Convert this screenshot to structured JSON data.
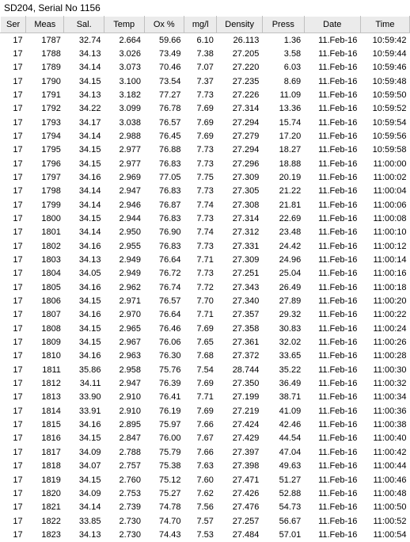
{
  "title": "SD204, Serial No 1156",
  "columns": [
    "Ser",
    "Meas",
    "Sal.",
    "Temp",
    "Ox %",
    "mg/l",
    "Density",
    "Press",
    "Date",
    "Time"
  ],
  "rows": [
    [
      "17",
      "1787",
      "32.74",
      "2.664",
      "59.66",
      "6.10",
      "26.113",
      "1.36",
      "11.Feb-16",
      "10:59:42"
    ],
    [
      "17",
      "1788",
      "34.13",
      "3.026",
      "73.49",
      "7.38",
      "27.205",
      "3.58",
      "11.Feb-16",
      "10:59:44"
    ],
    [
      "17",
      "1789",
      "34.14",
      "3.073",
      "70.46",
      "7.07",
      "27.220",
      "6.03",
      "11.Feb-16",
      "10:59:46"
    ],
    [
      "17",
      "1790",
      "34.15",
      "3.100",
      "73.54",
      "7.37",
      "27.235",
      "8.69",
      "11.Feb-16",
      "10:59:48"
    ],
    [
      "17",
      "1791",
      "34.13",
      "3.182",
      "77.27",
      "7.73",
      "27.226",
      "11.09",
      "11.Feb-16",
      "10:59:50"
    ],
    [
      "17",
      "1792",
      "34.22",
      "3.099",
      "76.78",
      "7.69",
      "27.314",
      "13.36",
      "11.Feb-16",
      "10:59:52"
    ],
    [
      "17",
      "1793",
      "34.17",
      "3.038",
      "76.57",
      "7.69",
      "27.294",
      "15.74",
      "11.Feb-16",
      "10:59:54"
    ],
    [
      "17",
      "1794",
      "34.14",
      "2.988",
      "76.45",
      "7.69",
      "27.279",
      "17.20",
      "11.Feb-16",
      "10:59:56"
    ],
    [
      "17",
      "1795",
      "34.15",
      "2.977",
      "76.88",
      "7.73",
      "27.294",
      "18.27",
      "11.Feb-16",
      "10:59:58"
    ],
    [
      "17",
      "1796",
      "34.15",
      "2.977",
      "76.83",
      "7.73",
      "27.296",
      "18.88",
      "11.Feb-16",
      "11:00:00"
    ],
    [
      "17",
      "1797",
      "34.16",
      "2.969",
      "77.05",
      "7.75",
      "27.309",
      "20.19",
      "11.Feb-16",
      "11:00:02"
    ],
    [
      "17",
      "1798",
      "34.14",
      "2.947",
      "76.83",
      "7.73",
      "27.305",
      "21.22",
      "11.Feb-16",
      "11:00:04"
    ],
    [
      "17",
      "1799",
      "34.14",
      "2.946",
      "76.87",
      "7.74",
      "27.308",
      "21.81",
      "11.Feb-16",
      "11:00:06"
    ],
    [
      "17",
      "1800",
      "34.15",
      "2.944",
      "76.83",
      "7.73",
      "27.314",
      "22.69",
      "11.Feb-16",
      "11:00:08"
    ],
    [
      "17",
      "1801",
      "34.14",
      "2.950",
      "76.90",
      "7.74",
      "27.312",
      "23.48",
      "11.Feb-16",
      "11:00:10"
    ],
    [
      "17",
      "1802",
      "34.16",
      "2.955",
      "76.83",
      "7.73",
      "27.331",
      "24.42",
      "11.Feb-16",
      "11:00:12"
    ],
    [
      "17",
      "1803",
      "34.13",
      "2.949",
      "76.64",
      "7.71",
      "27.309",
      "24.96",
      "11.Feb-16",
      "11:00:14"
    ],
    [
      "17",
      "1804",
      "34.05",
      "2.949",
      "76.72",
      "7.73",
      "27.251",
      "25.04",
      "11.Feb-16",
      "11:00:16"
    ],
    [
      "17",
      "1805",
      "34.16",
      "2.962",
      "76.74",
      "7.72",
      "27.343",
      "26.49",
      "11.Feb-16",
      "11:00:18"
    ],
    [
      "17",
      "1806",
      "34.15",
      "2.971",
      "76.57",
      "7.70",
      "27.340",
      "27.89",
      "11.Feb-16",
      "11:00:20"
    ],
    [
      "17",
      "1807",
      "34.16",
      "2.970",
      "76.64",
      "7.71",
      "27.357",
      "29.32",
      "11.Feb-16",
      "11:00:22"
    ],
    [
      "17",
      "1808",
      "34.15",
      "2.965",
      "76.46",
      "7.69",
      "27.358",
      "30.83",
      "11.Feb-16",
      "11:00:24"
    ],
    [
      "17",
      "1809",
      "34.15",
      "2.967",
      "76.06",
      "7.65",
      "27.361",
      "32.02",
      "11.Feb-16",
      "11:00:26"
    ],
    [
      "17",
      "1810",
      "34.16",
      "2.963",
      "76.30",
      "7.68",
      "27.372",
      "33.65",
      "11.Feb-16",
      "11:00:28"
    ],
    [
      "17",
      "1811",
      "35.86",
      "2.958",
      "75.76",
      "7.54",
      "28.744",
      "35.22",
      "11.Feb-16",
      "11:00:30"
    ],
    [
      "17",
      "1812",
      "34.11",
      "2.947",
      "76.39",
      "7.69",
      "27.350",
      "36.49",
      "11.Feb-16",
      "11:00:32"
    ],
    [
      "17",
      "1813",
      "33.90",
      "2.910",
      "76.41",
      "7.71",
      "27.199",
      "38.71",
      "11.Feb-16",
      "11:00:34"
    ],
    [
      "17",
      "1814",
      "33.91",
      "2.910",
      "76.19",
      "7.69",
      "27.219",
      "41.09",
      "11.Feb-16",
      "11:00:36"
    ],
    [
      "17",
      "1815",
      "34.16",
      "2.895",
      "75.97",
      "7.66",
      "27.424",
      "42.46",
      "11.Feb-16",
      "11:00:38"
    ],
    [
      "17",
      "1816",
      "34.15",
      "2.847",
      "76.00",
      "7.67",
      "27.429",
      "44.54",
      "11.Feb-16",
      "11:00:40"
    ],
    [
      "17",
      "1817",
      "34.09",
      "2.788",
      "75.79",
      "7.66",
      "27.397",
      "47.04",
      "11.Feb-16",
      "11:00:42"
    ],
    [
      "17",
      "1818",
      "34.07",
      "2.757",
      "75.38",
      "7.63",
      "27.398",
      "49.63",
      "11.Feb-16",
      "11:00:44"
    ],
    [
      "17",
      "1819",
      "34.15",
      "2.760",
      "75.12",
      "7.60",
      "27.471",
      "51.27",
      "11.Feb-16",
      "11:00:46"
    ],
    [
      "17",
      "1820",
      "34.09",
      "2.753",
      "75.27",
      "7.62",
      "27.426",
      "52.88",
      "11.Feb-16",
      "11:00:48"
    ],
    [
      "17",
      "1821",
      "34.14",
      "2.739",
      "74.78",
      "7.56",
      "27.476",
      "54.73",
      "11.Feb-16",
      "11:00:50"
    ],
    [
      "17",
      "1822",
      "33.85",
      "2.730",
      "74.70",
      "7.57",
      "27.257",
      "56.67",
      "11.Feb-16",
      "11:00:52"
    ],
    [
      "17",
      "1823",
      "34.13",
      "2.730",
      "74.43",
      "7.53",
      "27.484",
      "57.01",
      "11.Feb-16",
      "11:00:54"
    ]
  ]
}
